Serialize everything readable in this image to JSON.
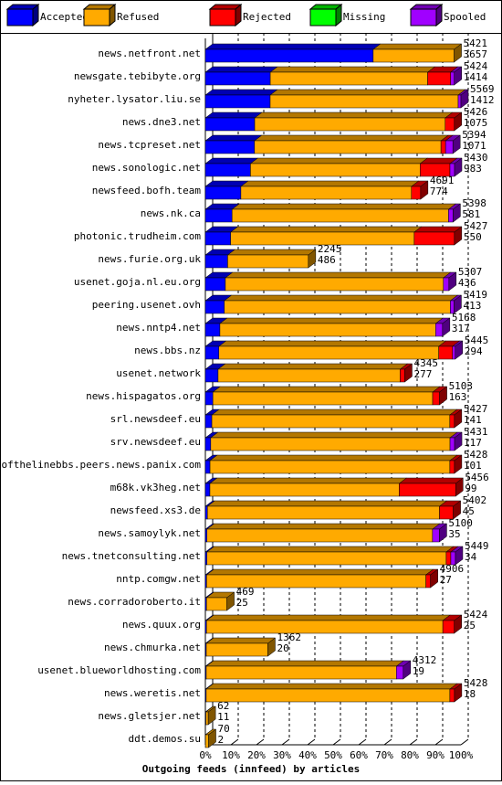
{
  "chart_data": {
    "type": "bar3d_stacked_horizontal",
    "xlabel": "Outgoing feeds (innfeed) by articles",
    "categories": [
      "news.netfront.net",
      "newsgate.tebibyte.org",
      "nyheter.lysator.liu.se",
      "news.dne3.net",
      "news.tcpreset.net",
      "news.sonologic.net",
      "newsfeed.bofh.team",
      "news.nk.ca",
      "photonic.trudheim.com",
      "news.furie.org.uk",
      "usenet.goja.nl.eu.org",
      "peering.usenet.ovh",
      "news.nntp4.net",
      "news.bbs.nz",
      "usenet.network",
      "news.hispagatos.org",
      "srl.newsdeef.eu",
      "srv.newsdeef.eu",
      "endofthelinebbs.peers.news.panix.com",
      "m68k.vk3heg.net",
      "newsfeed.xs3.de",
      "news.samoylyk.net",
      "news.tnetconsulting.net",
      "nntp.comgw.net",
      "news.corradoroberto.it",
      "news.quux.org",
      "news.chmurka.net",
      "usenet.blueworldhosting.com",
      "news.weretis.net",
      "news.gletsjer.net",
      "ddt.demos.su"
    ],
    "totals": [
      5421,
      5424,
      5569,
      5426,
      5394,
      5430,
      4691,
      5398,
      5427,
      2245,
      5307,
      5419,
      5168,
      5445,
      4345,
      5103,
      5427,
      5431,
      5428,
      5456,
      5402,
      5100,
      5449,
      4906,
      469,
      5424,
      1362,
      4312,
      5428,
      62,
      70
    ],
    "accepted_counts": [
      3657,
      1414,
      1412,
      1075,
      1071,
      983,
      774,
      581,
      550,
      486,
      436,
      413,
      317,
      294,
      277,
      163,
      141,
      117,
      101,
      99,
      45,
      35,
      34,
      27,
      25,
      25,
      20,
      19,
      18,
      11,
      2
    ],
    "series": [
      {
        "name": "Accepted",
        "color": "#0000ff",
        "values": [
          3657,
          1414,
          1412,
          1075,
          1071,
          983,
          774,
          581,
          550,
          486,
          436,
          413,
          317,
          294,
          277,
          163,
          141,
          117,
          101,
          99,
          45,
          35,
          34,
          27,
          25,
          25,
          20,
          19,
          18,
          11,
          2
        ]
      },
      {
        "name": "Refused",
        "color": "#ffaa00",
        "values": [
          1764,
          3430,
          4097,
          4151,
          4063,
          3697,
          3717,
          4717,
          4002,
          1759,
          4751,
          4926,
          4701,
          4791,
          3968,
          4790,
          5186,
          5214,
          5227,
          4127,
          5057,
          4915,
          5215,
          4779,
          444,
          5149,
          1342,
          4143,
          5310,
          51,
          68
        ]
      },
      {
        "name": "Rejected",
        "color": "#ff0000",
        "values": [
          0,
          500,
          0,
          200,
          100,
          650,
          200,
          0,
          875,
          0,
          0,
          0,
          0,
          300,
          100,
          150,
          100,
          0,
          100,
          1230,
          300,
          0,
          100,
          100,
          0,
          250,
          0,
          0,
          100,
          0,
          0
        ]
      },
      {
        "name": "Missing",
        "color": "#00ff00",
        "values": [
          0,
          0,
          0,
          0,
          0,
          0,
          0,
          0,
          0,
          0,
          0,
          0,
          0,
          0,
          0,
          0,
          0,
          0,
          0,
          0,
          0,
          0,
          0,
          0,
          0,
          0,
          0,
          0,
          0,
          0,
          0
        ]
      },
      {
        "name": "Spooled",
        "color": "#a000ff",
        "values": [
          0,
          80,
          60,
          0,
          160,
          100,
          0,
          100,
          0,
          0,
          120,
          80,
          150,
          60,
          0,
          0,
          0,
          100,
          0,
          0,
          0,
          150,
          100,
          0,
          0,
          0,
          0,
          150,
          0,
          0,
          0
        ]
      }
    ],
    "xlim": [
      0,
      5569
    ],
    "xticks": [
      {
        "value": 0,
        "label": "0%"
      },
      {
        "value": 556.9,
        "label": "10%"
      },
      {
        "value": 1113.8,
        "label": "20%"
      },
      {
        "value": 1670.7,
        "label": "30%"
      },
      {
        "value": 2227.6,
        "label": "40%"
      },
      {
        "value": 2784.5,
        "label": "50%"
      },
      {
        "value": 3341.4,
        "label": "60%"
      },
      {
        "value": 3898.3,
        "label": "70%"
      },
      {
        "value": 4455.2,
        "label": "80%"
      },
      {
        "value": 5012.1,
        "label": "90%"
      },
      {
        "value": 5569,
        "label": "100%"
      }
    ],
    "grid": true
  }
}
